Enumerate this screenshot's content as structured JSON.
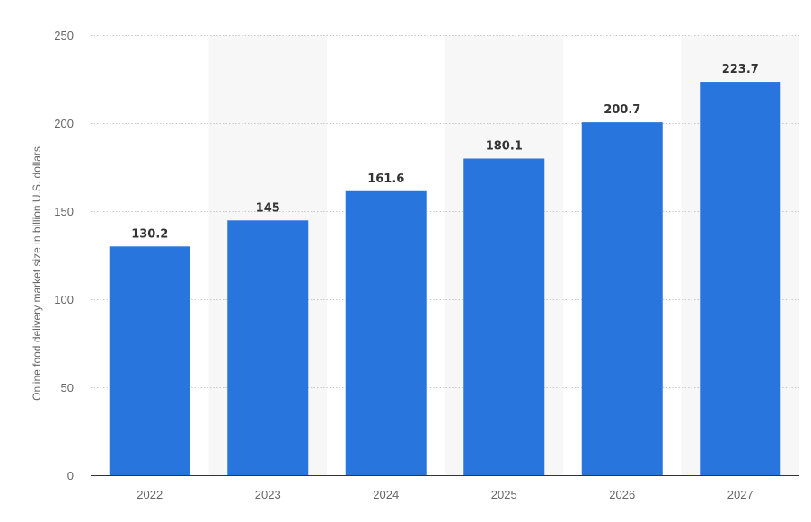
{
  "chart_data": {
    "type": "bar",
    "title": "",
    "xlabel": "",
    "ylabel": "Online food delivery market size in billion U.S. dollars",
    "categories": [
      "2022",
      "2023",
      "2024",
      "2025",
      "2026",
      "2027"
    ],
    "values": [
      130.2,
      145,
      161.6,
      180.1,
      200.7,
      223.7
    ],
    "value_labels": [
      "130.2",
      "145",
      "161.6",
      "180.1",
      "200.7",
      "223.7"
    ],
    "ylim": [
      0,
      250
    ],
    "yticks": [
      0,
      50,
      100,
      150,
      200,
      250
    ],
    "ytick_labels": [
      "0",
      "50",
      "100",
      "150",
      "200",
      "250"
    ],
    "grid": true,
    "grid_style": "dotted",
    "alternating_column_shading": true,
    "colors": {
      "bar": "#2876dd",
      "grid": "#c8c8c8",
      "shade": "#f7f7f7",
      "baseline": "#333333",
      "tick_text": "#666666",
      "value_text": "#333333"
    }
  }
}
